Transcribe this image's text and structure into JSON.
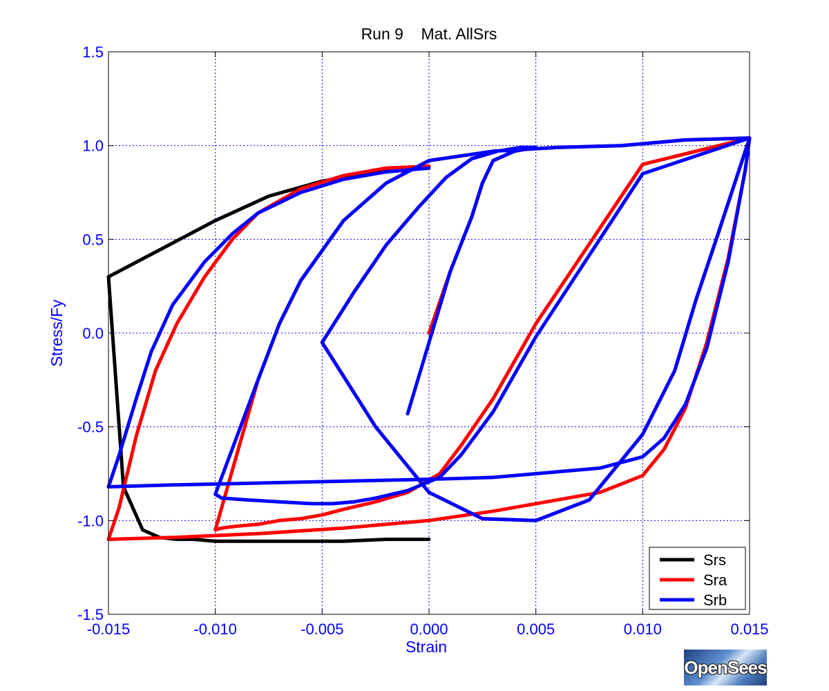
{
  "chart_data": {
    "type": "line",
    "title": "Run 9    Mat. AllSrs",
    "xlabel": "Strain",
    "ylabel": "Stress/Fy",
    "xlim": [
      -0.015,
      0.015
    ],
    "ylim": [
      -1.5,
      1.5
    ],
    "xticks": [
      -0.015,
      -0.01,
      -0.005,
      0.0,
      0.005,
      0.01,
      0.015
    ],
    "xtick_labels": [
      "-0.015",
      "-0.010",
      "-0.005",
      "0.000",
      "0.005",
      "0.010",
      "0.015"
    ],
    "yticks": [
      -1.5,
      -1.0,
      -0.5,
      0.0,
      0.5,
      1.0,
      1.5
    ],
    "ytick_labels": [
      "-1.5",
      "-1.0",
      "-0.5",
      "0.0",
      "0.5",
      "1.0",
      "1.5"
    ],
    "grid": true,
    "legend_position": "bottom-right",
    "series": [
      {
        "name": "Srs",
        "color": "#000000",
        "x": [
          0.0,
          -0.0025,
          -0.005,
          -0.0075,
          -0.01,
          -0.015,
          -0.0143,
          -0.0134,
          -0.0126,
          -0.0118,
          -0.011,
          -0.01,
          -0.0088,
          -0.007,
          -0.0055,
          -0.004,
          -0.002,
          0.0
        ],
        "y": [
          0.89,
          0.86,
          0.81,
          0.73,
          0.6,
          0.3,
          -0.82,
          -1.05,
          -1.09,
          -1.1,
          -1.1,
          -1.11,
          -1.11,
          -1.11,
          -1.11,
          -1.11,
          -1.1,
          -1.1
        ]
      },
      {
        "name": "Sra",
        "color": "#ff0000",
        "x": [
          0.0,
          0.001,
          0.002,
          0.0025,
          0.003,
          0.004,
          0.005,
          0.0043,
          0.0032,
          0.002,
          0.0008,
          -0.0005,
          -0.002,
          -0.0035,
          -0.005,
          -0.0025,
          0.0,
          0.0025,
          0.005,
          0.0075,
          0.01,
          0.0115,
          0.0125,
          0.0135,
          0.015,
          0.012,
          0.009,
          0.006,
          0.003,
          0.0,
          -0.002,
          -0.004,
          -0.006,
          -0.007,
          -0.008,
          -0.01,
          -0.0097,
          -0.009,
          -0.008,
          -0.007,
          -0.006,
          -0.005,
          -0.004,
          -0.0025,
          -0.001,
          0.0005,
          0.0015,
          0.003,
          0.005,
          0.01,
          0.015,
          0.0148,
          0.014,
          0.013,
          0.012,
          0.011,
          0.01,
          0.008,
          0.005,
          0.003,
          0.0,
          -0.004,
          -0.008,
          -0.012,
          -0.015,
          -0.0145,
          -0.0137,
          -0.0128,
          -0.0118,
          -0.0105,
          -0.0092,
          -0.008,
          -0.006,
          -0.004,
          -0.002,
          0.0
        ],
        "y": [
          0.0,
          0.33,
          0.62,
          0.8,
          0.92,
          0.97,
          0.99,
          0.99,
          0.97,
          0.93,
          0.83,
          0.67,
          0.47,
          0.22,
          -0.05,
          -0.5,
          -0.85,
          -0.99,
          -1.0,
          -0.89,
          -0.54,
          -0.2,
          0.18,
          0.52,
          1.04,
          1.03,
          1.0,
          0.99,
          0.97,
          0.92,
          0.8,
          0.6,
          0.28,
          0.05,
          -0.25,
          -1.05,
          -1.04,
          -1.03,
          -1.02,
          -1.0,
          -0.99,
          -0.97,
          -0.94,
          -0.9,
          -0.85,
          -0.75,
          -0.6,
          -0.35,
          0.05,
          0.9,
          1.04,
          0.87,
          0.4,
          -0.05,
          -0.4,
          -0.62,
          -0.76,
          -0.85,
          -0.91,
          -0.95,
          -1.0,
          -1.04,
          -1.07,
          -1.09,
          -1.1,
          -0.93,
          -0.55,
          -0.2,
          0.05,
          0.3,
          0.5,
          0.64,
          0.77,
          0.84,
          0.88,
          0.89
        ]
      },
      {
        "name": "Srb",
        "color": "#0000ff",
        "x": [
          -0.001,
          0.0,
          0.001,
          0.002,
          0.0025,
          0.003,
          0.004,
          0.005,
          0.0043,
          0.0032,
          0.002,
          0.0008,
          -0.0005,
          -0.002,
          -0.0035,
          -0.005,
          -0.0025,
          0.0,
          0.0025,
          0.005,
          0.0075,
          0.01,
          0.0115,
          0.0125,
          0.0135,
          0.015,
          0.012,
          0.009,
          0.006,
          0.003,
          0.0,
          -0.002,
          -0.004,
          -0.006,
          -0.007,
          -0.008,
          -0.01,
          -0.0097,
          -0.0085,
          -0.007,
          -0.0055,
          -0.0045,
          -0.0035,
          -0.0025,
          -0.001,
          0.0005,
          0.0015,
          0.003,
          0.005,
          0.01,
          0.015,
          0.0148,
          0.014,
          0.013,
          0.012,
          0.011,
          0.01,
          0.008,
          0.005,
          0.003,
          0.0,
          -0.004,
          -0.008,
          -0.012,
          -0.015,
          -0.0145,
          -0.0137,
          -0.013,
          -0.012,
          -0.0105,
          -0.0092,
          -0.008,
          -0.006,
          -0.004,
          -0.002,
          0.0
        ],
        "y": [
          -0.43,
          -0.05,
          0.33,
          0.62,
          0.8,
          0.92,
          0.97,
          0.99,
          0.99,
          0.97,
          0.93,
          0.83,
          0.67,
          0.47,
          0.22,
          -0.05,
          -0.5,
          -0.85,
          -0.99,
          -1.0,
          -0.89,
          -0.54,
          -0.2,
          0.18,
          0.52,
          1.04,
          1.03,
          1.0,
          0.99,
          0.97,
          0.92,
          0.8,
          0.6,
          0.28,
          0.05,
          -0.25,
          -0.86,
          -0.88,
          -0.89,
          -0.9,
          -0.91,
          -0.91,
          -0.9,
          -0.88,
          -0.84,
          -0.77,
          -0.65,
          -0.42,
          -0.02,
          0.85,
          1.04,
          0.87,
          0.38,
          -0.08,
          -0.38,
          -0.56,
          -0.66,
          -0.72,
          -0.75,
          -0.77,
          -0.78,
          -0.79,
          -0.8,
          -0.81,
          -0.82,
          -0.65,
          -0.35,
          -0.1,
          0.15,
          0.38,
          0.53,
          0.64,
          0.75,
          0.82,
          0.86,
          0.88
        ]
      }
    ]
  },
  "logo": {
    "text": "OpenSees"
  }
}
